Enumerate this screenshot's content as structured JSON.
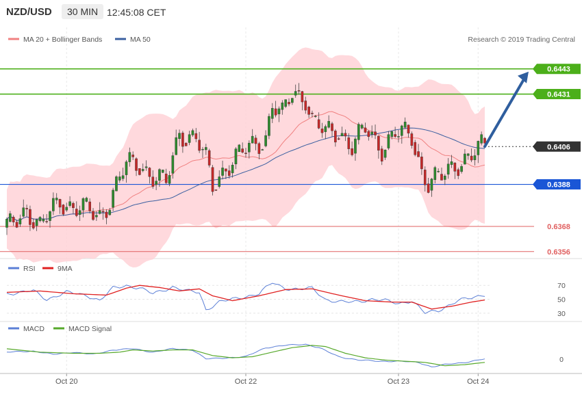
{
  "header": {
    "pair": "NZD/USD",
    "timeframe": "30 MIN",
    "time": "12:45:08 CET"
  },
  "copyright": "Research © 2019 Trading Central",
  "colors": {
    "ma20": "#f08080",
    "bands": "#ffd0d4",
    "ma50": "#3a5fa0",
    "green_level": "#4caf1a",
    "blue_level": "#1a56d6",
    "red_level": "#e06060",
    "bull": "#2e8b2e",
    "bear": "#c62828",
    "rsi": "#5b7fd6",
    "rsi_ma": "#e02020",
    "macd": "#5b7fd6",
    "macd_signal": "#56a82a",
    "current_price": "#333333"
  },
  "chart_data": [
    {
      "type": "candlestick",
      "panel": "price",
      "legend": [
        "MA 20 + Bollinger Bands",
        "MA 50"
      ],
      "ylim": [
        0.6353,
        0.6453
      ],
      "x_labels": [
        {
          "label": "Oct 20",
          "index": 18
        },
        {
          "label": "Oct 22",
          "index": 72
        },
        {
          "label": "Oct 23",
          "index": 118
        },
        {
          "label": "Oct 24",
          "index": 142
        }
      ],
      "candle_count": 145,
      "levels": [
        {
          "value": 0.6443,
          "label": "0.6443",
          "kind": "resistance"
        },
        {
          "value": 0.6431,
          "label": "0.6431",
          "kind": "resistance"
        },
        {
          "value": 0.6406,
          "label": "0.6406",
          "kind": "current"
        },
        {
          "value": 0.6388,
          "label": "0.6388",
          "kind": "pivot"
        },
        {
          "value": 0.6368,
          "label": "0.6368",
          "kind": "support"
        },
        {
          "value": 0.6356,
          "label": "0.6356",
          "kind": "support"
        }
      ],
      "path_points": [
        [
          0,
          0.6366
        ],
        [
          6,
          0.6377
        ],
        [
          10,
          0.6367
        ],
        [
          16,
          0.6381
        ],
        [
          19,
          0.6378
        ],
        [
          28,
          0.6373
        ],
        [
          31,
          0.6381
        ],
        [
          36,
          0.6397
        ],
        [
          40,
          0.6398
        ],
        [
          44,
          0.6392
        ],
        [
          48,
          0.6388
        ],
        [
          52,
          0.6413
        ],
        [
          57,
          0.641
        ],
        [
          60,
          0.6399
        ],
        [
          62,
          0.6387
        ],
        [
          66,
          0.6397
        ],
        [
          72,
          0.6404
        ],
        [
          78,
          0.6411
        ],
        [
          80,
          0.6426
        ],
        [
          83,
          0.642
        ],
        [
          86,
          0.6432
        ],
        [
          90,
          0.643
        ],
        [
          92,
          0.6418
        ],
        [
          96,
          0.6412
        ],
        [
          100,
          0.6414
        ],
        [
          104,
          0.6406
        ],
        [
          108,
          0.6414
        ],
        [
          113,
          0.6406
        ],
        [
          117,
          0.6412
        ],
        [
          122,
          0.6411
        ],
        [
          125,
          0.6395
        ],
        [
          127,
          0.6389
        ],
        [
          131,
          0.6391
        ],
        [
          136,
          0.6399
        ],
        [
          140,
          0.6402
        ],
        [
          144,
          0.6406
        ]
      ],
      "forecast": {
        "from_value": 0.6406,
        "to_value": 0.6443
      }
    },
    {
      "type": "line",
      "panel": "rsi",
      "legend": [
        "RSI",
        "9MA"
      ],
      "y_ticks": [
        70,
        50,
        30
      ],
      "ylim": [
        20,
        85
      ],
      "rsi_points": [
        [
          0,
          58
        ],
        [
          8,
          62
        ],
        [
          12,
          50
        ],
        [
          18,
          60
        ],
        [
          24,
          56
        ],
        [
          28,
          48
        ],
        [
          32,
          66
        ],
        [
          36,
          70
        ],
        [
          40,
          66
        ],
        [
          44,
          58
        ],
        [
          50,
          68
        ],
        [
          54,
          62
        ],
        [
          58,
          60
        ],
        [
          60,
          35
        ],
        [
          64,
          46
        ],
        [
          70,
          52
        ],
        [
          76,
          58
        ],
        [
          80,
          74
        ],
        [
          84,
          66
        ],
        [
          88,
          64
        ],
        [
          92,
          66
        ],
        [
          96,
          50
        ],
        [
          100,
          46
        ],
        [
          104,
          46
        ],
        [
          110,
          50
        ],
        [
          114,
          48
        ],
        [
          118,
          44
        ],
        [
          122,
          48
        ],
        [
          126,
          30
        ],
        [
          130,
          34
        ],
        [
          136,
          48
        ],
        [
          140,
          52
        ],
        [
          144,
          57
        ]
      ],
      "ma_points": [
        [
          0,
          60
        ],
        [
          10,
          62
        ],
        [
          20,
          58
        ],
        [
          30,
          56
        ],
        [
          36,
          66
        ],
        [
          40,
          70
        ],
        [
          46,
          67
        ],
        [
          52,
          62
        ],
        [
          58,
          65
        ],
        [
          62,
          55
        ],
        [
          68,
          48
        ],
        [
          76,
          55
        ],
        [
          84,
          64
        ],
        [
          92,
          65
        ],
        [
          100,
          56
        ],
        [
          108,
          48
        ],
        [
          116,
          46
        ],
        [
          122,
          46
        ],
        [
          128,
          36
        ],
        [
          134,
          40
        ],
        [
          140,
          46
        ],
        [
          144,
          49
        ]
      ]
    },
    {
      "type": "line",
      "panel": "macd",
      "legend": [
        "MACD",
        "MACD Signal"
      ],
      "y_ticks": [
        0
      ],
      "ylim": [
        -11,
        21
      ],
      "macd_points": [
        [
          0,
          6
        ],
        [
          8,
          7
        ],
        [
          14,
          4
        ],
        [
          20,
          6
        ],
        [
          26,
          4
        ],
        [
          32,
          8
        ],
        [
          38,
          9
        ],
        [
          44,
          6
        ],
        [
          50,
          9
        ],
        [
          56,
          8
        ],
        [
          60,
          0
        ],
        [
          66,
          1
        ],
        [
          72,
          2
        ],
        [
          78,
          10
        ],
        [
          84,
          12
        ],
        [
          90,
          13
        ],
        [
          94,
          10
        ],
        [
          100,
          2
        ],
        [
          106,
          -1
        ],
        [
          112,
          -2
        ],
        [
          118,
          -2
        ],
        [
          124,
          -3
        ],
        [
          128,
          -7
        ],
        [
          132,
          -5
        ],
        [
          138,
          -3
        ],
        [
          144,
          0
        ]
      ],
      "signal_points": [
        [
          0,
          9
        ],
        [
          10,
          6
        ],
        [
          20,
          5
        ],
        [
          28,
          5
        ],
        [
          34,
          6
        ],
        [
          38,
          8
        ],
        [
          44,
          7
        ],
        [
          50,
          8
        ],
        [
          56,
          8
        ],
        [
          62,
          3
        ],
        [
          68,
          1
        ],
        [
          74,
          2
        ],
        [
          80,
          6
        ],
        [
          86,
          10
        ],
        [
          92,
          12
        ],
        [
          96,
          11
        ],
        [
          102,
          5
        ],
        [
          108,
          1
        ],
        [
          114,
          -1
        ],
        [
          120,
          -2
        ],
        [
          126,
          -3
        ],
        [
          132,
          -6
        ],
        [
          138,
          -5
        ],
        [
          144,
          -3
        ]
      ]
    }
  ]
}
